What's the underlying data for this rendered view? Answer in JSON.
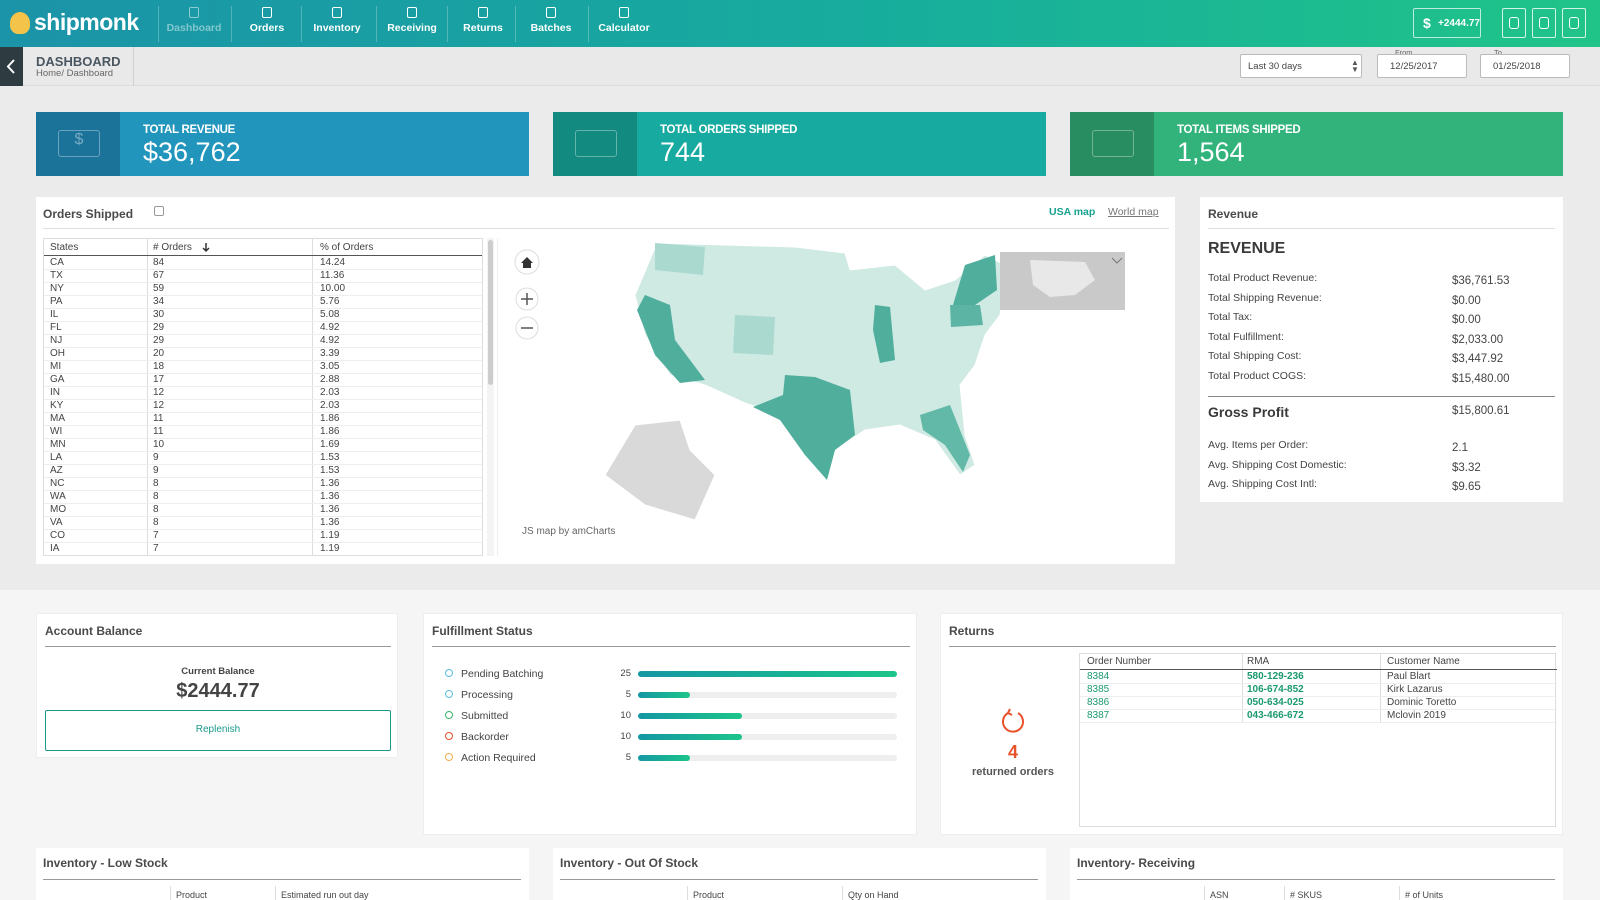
{
  "nav": {
    "logo": "shipmonk",
    "items": [
      "Dashboard",
      "Orders",
      "Inventory",
      "Receiving",
      "Returns",
      "Batches",
      "Calculator"
    ],
    "currency": "$",
    "balance": "+2444.77"
  },
  "header": {
    "title": "DASHBOARD",
    "breadcrumb": "Home/ Dashboard",
    "range": "Last 30 days",
    "from_label": "From",
    "from": "12/25/2017",
    "to_label": "To",
    "to": "01/25/2018"
  },
  "kpis": [
    {
      "label": "TOTAL REVENUE",
      "value": "$36,762",
      "icon": "$"
    },
    {
      "label": "TOTAL ORDERS SHIPPED",
      "value": "744"
    },
    {
      "label": "TOTAL ITEMS SHIPPED",
      "value": "1,564"
    }
  ],
  "orders_shipped": {
    "title": "Orders Shipped",
    "tabs": [
      "USA map",
      "World map"
    ],
    "columns": [
      "States",
      "# Orders",
      "% of Orders"
    ],
    "rows": [
      [
        "CA",
        "84",
        "14.24"
      ],
      [
        "TX",
        "67",
        "11.36"
      ],
      [
        "NY",
        "59",
        "10.00"
      ],
      [
        "PA",
        "34",
        "5.76"
      ],
      [
        "IL",
        "30",
        "5.08"
      ],
      [
        "FL",
        "29",
        "4.92"
      ],
      [
        "NJ",
        "29",
        "4.92"
      ],
      [
        "OH",
        "20",
        "3.39"
      ],
      [
        "MI",
        "18",
        "3.05"
      ],
      [
        "GA",
        "17",
        "2.88"
      ],
      [
        "IN",
        "12",
        "2.03"
      ],
      [
        "KY",
        "12",
        "2.03"
      ],
      [
        "MA",
        "11",
        "1.86"
      ],
      [
        "WI",
        "11",
        "1.86"
      ],
      [
        "MN",
        "10",
        "1.69"
      ],
      [
        "LA",
        "9",
        "1.53"
      ],
      [
        "AZ",
        "9",
        "1.53"
      ],
      [
        "NC",
        "8",
        "1.36"
      ],
      [
        "WA",
        "8",
        "1.36"
      ],
      [
        "MO",
        "8",
        "1.36"
      ],
      [
        "VA",
        "8",
        "1.36"
      ],
      [
        "CO",
        "7",
        "1.19"
      ],
      [
        "IA",
        "7",
        "1.19"
      ]
    ],
    "credit": "JS map by amCharts"
  },
  "revenue": {
    "title": "Revenue",
    "heading": "REVENUE",
    "items": [
      [
        "Total Product Revenue:",
        "$36,761.53"
      ],
      [
        "Total Shipping Revenue:",
        "$0.00"
      ],
      [
        "Total Tax:",
        "$0.00"
      ],
      [
        "Total Fulfillment:",
        "$2,033.00"
      ],
      [
        "Total Shipping Cost:",
        "$3,447.92"
      ],
      [
        "Total Product COGS:",
        "$15,480.00"
      ]
    ],
    "gross_profit": [
      "Gross Profit",
      "$15,800.61"
    ],
    "averages": [
      [
        "Avg. Items per Order:",
        "2.1"
      ],
      [
        "Avg. Shipping Cost Domestic:",
        "$3.32"
      ],
      [
        "Avg. Shipping Cost Intl:",
        "$9.65"
      ]
    ]
  },
  "account_balance": {
    "title": "Account Balance",
    "label": "Current Balance",
    "amount": "$2444.77",
    "button": "Replenish"
  },
  "fulfillment": {
    "title": "Fulfillment Status",
    "items": [
      {
        "label": "Pending Batching",
        "count": 25
      },
      {
        "label": "Processing",
        "count": 5
      },
      {
        "label": "Submitted",
        "count": 10
      },
      {
        "label": "Backorder",
        "count": 10
      },
      {
        "label": "Action Required",
        "count": 5
      }
    ]
  },
  "returns": {
    "title": "Returns",
    "count": "4",
    "caption": "returned orders",
    "columns": [
      "Order Number",
      "RMA",
      "Customer Name"
    ],
    "rows": [
      [
        "8384",
        "580-129-236",
        "Paul Blart"
      ],
      [
        "8385",
        "106-674-852",
        "Kirk Lazarus"
      ],
      [
        "8386",
        "050-634-025",
        "Dominic Toretto"
      ],
      [
        "8387",
        "043-466-672",
        "Mclovin 2019"
      ]
    ]
  },
  "inventory": [
    {
      "title": "Inventory - Low Stock",
      "columns": [
        "Product",
        "Estimated run out day"
      ]
    },
    {
      "title": "Inventory - Out Of Stock",
      "columns": [
        "Product",
        "Qty on Hand"
      ]
    },
    {
      "title": "Inventory- Receiving",
      "columns": [
        "ASN",
        "# SKUS",
        "# of Units"
      ]
    }
  ]
}
